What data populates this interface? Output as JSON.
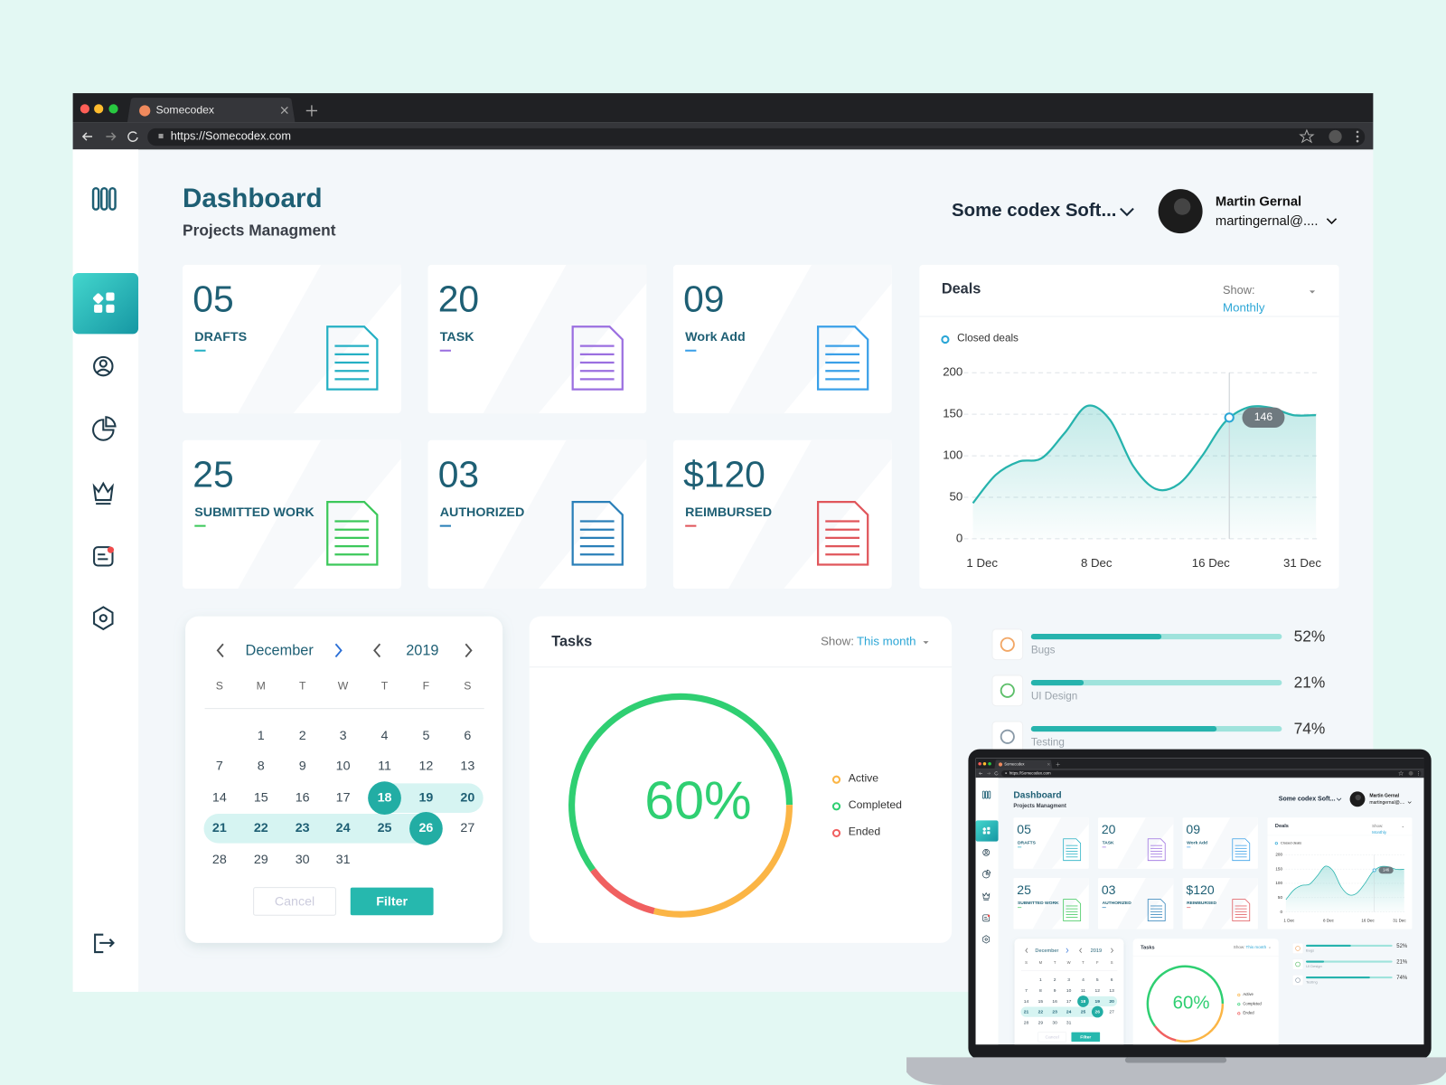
{
  "browser": {
    "tab_title": "Somecodex",
    "url": "https://Somecodex.com"
  },
  "header": {
    "title": "Dashboard",
    "subtitle": "Projects Managment",
    "company": "Some codex Soft...",
    "user_name": "Martin Gernal",
    "user_email": "martingernal@...."
  },
  "cards": [
    {
      "value": "05",
      "label": "DRAFTS",
      "color": "#25b0c4"
    },
    {
      "value": "20",
      "label": "TASK",
      "color": "#9b6fe0"
    },
    {
      "value": "09",
      "label": "Work Add",
      "color": "#3aa0e8"
    },
    {
      "value": "25",
      "label": "SUBMITTED WORK",
      "color": "#3cc85a"
    },
    {
      "value": "03",
      "label": "AUTHORIZED",
      "color": "#2a7fb8"
    },
    {
      "value": "$120",
      "label": "REIMBURSED",
      "color": "#e0565b"
    }
  ],
  "deals": {
    "title": "Deals",
    "show_label": "Show:",
    "show_value": "Monthly",
    "legend": "Closed deals",
    "color": "#26b3ad",
    "ylim": [
      0,
      200
    ],
    "yticks": [
      0,
      50,
      100,
      150,
      200
    ],
    "categories": [
      "1 Dec",
      null,
      null,
      null,
      null,
      "8 Dec",
      null,
      null,
      null,
      null,
      "16 Dec",
      null,
      null,
      null,
      "31 Dec",
      null
    ],
    "values": [
      43,
      77,
      93,
      97,
      127,
      160,
      143,
      88,
      60,
      66,
      99,
      140,
      158,
      158,
      149,
      149
    ],
    "tooltip_value": 146
  },
  "calendar": {
    "month": "December",
    "year": "2019",
    "weekdays": [
      "S",
      "M",
      "T",
      "W",
      "T",
      "F",
      "S"
    ],
    "days": [
      1,
      2,
      3,
      4,
      5,
      6,
      7,
      8,
      9,
      10,
      11,
      12,
      13,
      14,
      15,
      16,
      17,
      18,
      19,
      20,
      21,
      22,
      23,
      24,
      25,
      26,
      27,
      28,
      29,
      30,
      31
    ],
    "selected": [
      18,
      26
    ],
    "cancel": "Cancel",
    "filter": "Filter"
  },
  "tasks": {
    "title": "Tasks",
    "show_label": "Show:",
    "show_value": "This month",
    "center_label": "60%",
    "series": [
      {
        "name": "Active",
        "color": "#fbb545",
        "value": 29
      },
      {
        "name": "Completed",
        "color": "#2fcf72",
        "value": 60
      },
      {
        "name": "Ended",
        "color": "#f06060",
        "value": 11
      }
    ]
  },
  "progress": {
    "names": [
      "Bugs",
      "UI Design",
      "Testing"
    ],
    "values": [
      52,
      21,
      74
    ],
    "value_labels": [
      "52%",
      "21%",
      "74%"
    ],
    "colors": [
      "#f2a766",
      "#5dbf6a",
      "#8a9aa8"
    ]
  }
}
